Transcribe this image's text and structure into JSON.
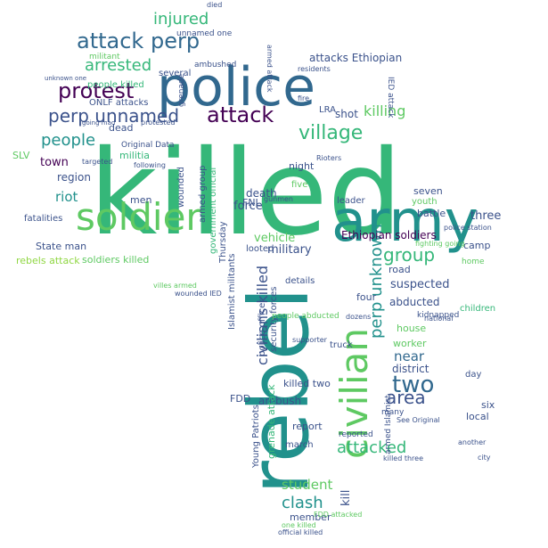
{
  "word_cloud": {
    "palette": {
      "dark_purple": "#440154",
      "indigo": "#3b528b",
      "blue": "#31688e",
      "teal": "#21918c",
      "green_teal": "#35b779",
      "green": "#5ec962",
      "lime": "#90d743",
      "yellow": "#fde725"
    },
    "words": [
      {
        "text": "killed",
        "color": "#35b779"
      },
      {
        "text": "police",
        "color": "#31688e"
      },
      {
        "text": "rebel",
        "color": "#21918c"
      },
      {
        "text": "army",
        "color": "#21918c"
      },
      {
        "text": "soldier",
        "color": "#5ec962"
      },
      {
        "text": "civilian",
        "color": "#5ec962"
      },
      {
        "text": "attack perp",
        "color": "#31688e"
      },
      {
        "text": "protest",
        "color": "#440154"
      },
      {
        "text": "attack",
        "color": "#440154"
      },
      {
        "text": "village",
        "color": "#35b779"
      },
      {
        "text": "perp unnamed",
        "color": "#3b528b"
      },
      {
        "text": "two",
        "color": "#31688e"
      },
      {
        "text": "injured",
        "color": "#35b779"
      },
      {
        "text": "arrested",
        "color": "#35b779"
      },
      {
        "text": "people",
        "color": "#21918c"
      },
      {
        "text": "group",
        "color": "#35b779"
      },
      {
        "text": "perp unknown",
        "color": "#21918c"
      },
      {
        "text": "area",
        "color": "#3b528b"
      },
      {
        "text": "attacked",
        "color": "#35b779"
      },
      {
        "text": "clash",
        "color": "#21918c"
      },
      {
        "text": "civilians killed",
        "color": "#3b528b"
      },
      {
        "text": "killing",
        "color": "#5ec962"
      },
      {
        "text": "student",
        "color": "#5ec962"
      },
      {
        "text": "near",
        "color": "#31688e"
      },
      {
        "text": "attacks Ethiopian",
        "color": "#3b528b"
      },
      {
        "text": "Ethiopian soldiers",
        "color": "#440154"
      },
      {
        "text": "three",
        "color": "#3b528b"
      },
      {
        "text": "region",
        "color": "#3b528b"
      },
      {
        "text": "town",
        "color": "#440154"
      },
      {
        "text": "riot",
        "color": "#21918c"
      },
      {
        "text": "military",
        "color": "#3b528b"
      },
      {
        "text": "suspected",
        "color": "#3b528b"
      },
      {
        "text": "force",
        "color": "#3b528b"
      },
      {
        "text": "death",
        "color": "#3b528b"
      },
      {
        "text": "vehicle",
        "color": "#5ec962"
      },
      {
        "text": "abducted",
        "color": "#3b528b"
      },
      {
        "text": "district",
        "color": "#3b528b"
      },
      {
        "text": "ambush",
        "color": "#3b528b"
      },
      {
        "text": "report",
        "color": "#3b528b"
      },
      {
        "text": "kill",
        "color": "#3b528b"
      },
      {
        "text": "shot",
        "color": "#3b528b"
      },
      {
        "text": "night",
        "color": "#3b528b"
      },
      {
        "text": "camp",
        "color": "#3b528b"
      },
      {
        "text": "road",
        "color": "#3b528b"
      },
      {
        "text": "four",
        "color": "#3b528b"
      },
      {
        "text": "seven",
        "color": "#3b528b"
      },
      {
        "text": "battle",
        "color": "#3b528b"
      },
      {
        "text": "member",
        "color": "#3b528b"
      },
      {
        "text": "men",
        "color": "#3b528b"
      },
      {
        "text": "dead",
        "color": "#3b528b"
      },
      {
        "text": "fatalities",
        "color": "#3b528b"
      },
      {
        "text": "State man",
        "color": "#3b528b"
      },
      {
        "text": "rebels attack",
        "color": "#90d743"
      },
      {
        "text": "soldiers killed",
        "color": "#5ec962"
      },
      {
        "text": "people killed",
        "color": "#35b779"
      },
      {
        "text": "ONLF attacks",
        "color": "#3b528b"
      },
      {
        "text": "militia",
        "color": "#35b779"
      },
      {
        "text": "Original Data",
        "color": "#3b528b"
      },
      {
        "text": "security forces",
        "color": "#3b528b"
      },
      {
        "text": "police officer",
        "color": "#3b528b"
      },
      {
        "text": "armed group",
        "color": "#3b528b"
      },
      {
        "text": "government official",
        "color": "#35b779"
      },
      {
        "text": "wounded",
        "color": "#3b528b"
      },
      {
        "text": "Islamist militants",
        "color": "#3b528b"
      },
      {
        "text": "Young Patriots",
        "color": "#3b528b"
      },
      {
        "text": "grenade attack",
        "color": "#35b779"
      },
      {
        "text": "FDD",
        "color": "#3b528b"
      },
      {
        "text": "FNL",
        "color": "#3b528b"
      },
      {
        "text": "LRA",
        "color": "#3b528b"
      },
      {
        "text": "SLV",
        "color": "#5ec962"
      },
      {
        "text": "looted",
        "color": "#3b528b"
      },
      {
        "text": "details",
        "color": "#3b528b"
      },
      {
        "text": "leader",
        "color": "#3b528b"
      },
      {
        "text": "five",
        "color": "#5ec962"
      },
      {
        "text": "Thursday",
        "color": "#3b528b"
      },
      {
        "text": "children",
        "color": "#35b779"
      },
      {
        "text": "house",
        "color": "#5ec962"
      },
      {
        "text": "worker",
        "color": "#5ec962"
      },
      {
        "text": "local",
        "color": "#3b528b"
      },
      {
        "text": "six",
        "color": "#3b528b"
      },
      {
        "text": "day",
        "color": "#3b528b"
      },
      {
        "text": "youth",
        "color": "#5ec962"
      },
      {
        "text": "killed two",
        "color": "#3b528b"
      },
      {
        "text": "truck",
        "color": "#3b528b"
      },
      {
        "text": "march",
        "color": "#3b528b"
      },
      {
        "text": "kidnapped",
        "color": "#3b528b"
      },
      {
        "text": "supporter",
        "color": "#3b528b"
      },
      {
        "text": "people abducted",
        "color": "#5ec962"
      },
      {
        "text": "several",
        "color": "#3b528b"
      },
      {
        "text": "ambushed",
        "color": "#3b528b"
      },
      {
        "text": "unnamed one",
        "color": "#3b528b"
      },
      {
        "text": "militant",
        "color": "#5ec962"
      },
      {
        "text": "armed attack",
        "color": "#3b528b"
      },
      {
        "text": "IED attack",
        "color": "#3b528b"
      },
      {
        "text": "targeted",
        "color": "#3b528b"
      },
      {
        "text": "following",
        "color": "#3b528b"
      },
      {
        "text": "police station",
        "color": "#3b528b"
      },
      {
        "text": "home",
        "color": "#5ec962"
      },
      {
        "text": "reported",
        "color": "#3b528b"
      },
      {
        "text": "See Original",
        "color": "#3b528b"
      },
      {
        "text": "protested",
        "color": "#3b528b"
      },
      {
        "text": "armed Islamist",
        "color": "#3b528b"
      },
      {
        "text": "wounded IED",
        "color": "#3b528b"
      },
      {
        "text": "many",
        "color": "#3b528b"
      },
      {
        "text": "city",
        "color": "#3b528b"
      },
      {
        "text": "killed three",
        "color": "#3b528b"
      },
      {
        "text": "official killed",
        "color": "#3b528b"
      },
      {
        "text": "fighting going",
        "color": "#5ec962"
      },
      {
        "text": "national",
        "color": "#3b528b"
      },
      {
        "text": "residents",
        "color": "#3b528b"
      },
      {
        "text": "fire",
        "color": "#3b528b"
      },
      {
        "text": "gunmen",
        "color": "#3b528b"
      },
      {
        "text": "Rioters",
        "color": "#3b528b"
      },
      {
        "text": "grenade",
        "color": "#3b528b"
      },
      {
        "text": "died",
        "color": "#3b528b"
      },
      {
        "text": "another",
        "color": "#3b528b"
      },
      {
        "text": "one killed",
        "color": "#5ec962"
      },
      {
        "text": "dozens",
        "color": "#3b528b"
      },
      {
        "text": "unknown one",
        "color": "#3b528b"
      },
      {
        "text": "going mad",
        "color": "#3b528b"
      },
      {
        "text": "villes armed",
        "color": "#5ec962"
      },
      {
        "text": "FDD attacked",
        "color": "#5ec962"
      }
    ]
  }
}
